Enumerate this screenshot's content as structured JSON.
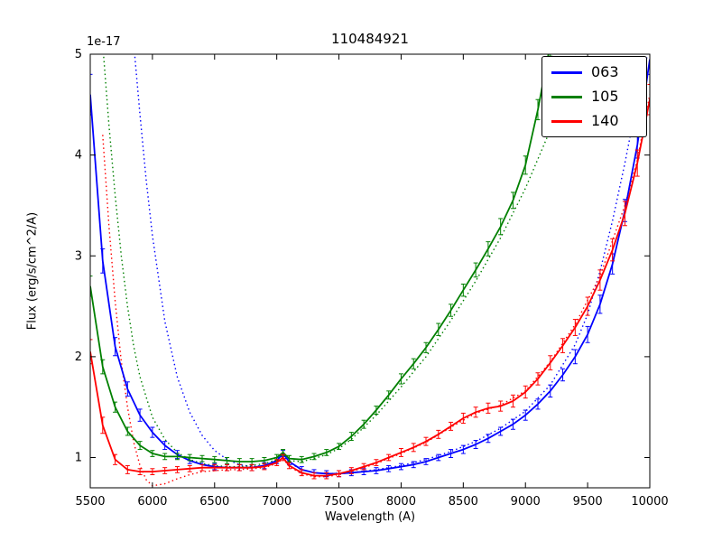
{
  "chart_data": {
    "type": "line",
    "title": "110484921",
    "xlabel": "Wavelength (A)",
    "ylabel": "Flux (erg/s/cm^2/A)",
    "y_offset_text": "1e-17",
    "xlim": [
      5500,
      10000
    ],
    "ylim": [
      0.7,
      5.0
    ],
    "xticks": [
      5500,
      6000,
      6500,
      7000,
      7500,
      8000,
      8500,
      9000,
      9500,
      10000
    ],
    "yticks": [
      1,
      2,
      3,
      4,
      5
    ],
    "grid": false,
    "legend": {
      "position": "upper right",
      "entries": [
        {
          "label": "063",
          "color": "#0000ff"
        },
        {
          "label": "105",
          "color": "#008000"
        },
        {
          "label": "140",
          "color": "#ff0000"
        }
      ]
    },
    "series": [
      {
        "name": "063-model",
        "color": "#0000ff",
        "line": "dotted",
        "x": [
          5850,
          5900,
          5950,
          6000,
          6100,
          6200,
          6300,
          6400,
          6500,
          6600,
          6700,
          6800,
          6900,
          7000,
          7050,
          7100,
          7200,
          7300,
          7400,
          7600,
          7800,
          8000,
          8200,
          8400,
          8600,
          8800,
          9000,
          9200,
          9400,
          9500,
          9600,
          9700,
          9800,
          9900,
          10000
        ],
        "y": [
          5.1,
          4.4,
          3.75,
          3.2,
          2.35,
          1.8,
          1.45,
          1.22,
          1.07,
          0.98,
          0.93,
          0.91,
          0.92,
          0.96,
          1.01,
          0.95,
          0.88,
          0.85,
          0.84,
          0.85,
          0.88,
          0.92,
          0.98,
          1.06,
          1.16,
          1.29,
          1.46,
          1.72,
          2.12,
          2.42,
          2.85,
          3.35,
          3.92,
          4.55,
          5.1
        ]
      },
      {
        "name": "105-model",
        "color": "#008000",
        "line": "dotted",
        "x": [
          5600,
          5650,
          5700,
          5750,
          5800,
          5850,
          5900,
          6000,
          6100,
          6200,
          6300,
          6400,
          6500,
          6600,
          6700,
          6800,
          6900,
          7000,
          7050,
          7100,
          7200,
          7300,
          7400,
          7500,
          7600,
          7800,
          8000,
          8200,
          8400,
          8600,
          8800,
          9000,
          9200,
          9300,
          9400
        ],
        "y": [
          5.1,
          4.3,
          3.6,
          3.0,
          2.5,
          2.1,
          1.8,
          1.4,
          1.18,
          1.05,
          0.98,
          0.94,
          0.92,
          0.91,
          0.91,
          0.92,
          0.94,
          0.98,
          1.02,
          0.97,
          0.96,
          0.99,
          1.03,
          1.09,
          1.18,
          1.42,
          1.7,
          2.0,
          2.36,
          2.75,
          3.18,
          3.67,
          4.25,
          4.6,
          5.0
        ]
      },
      {
        "name": "140-model",
        "color": "#ff0000",
        "line": "dotted",
        "x": [
          5600,
          5650,
          5700,
          5750,
          5800,
          5850,
          5900,
          5950,
          6000,
          6100,
          6200,
          6300,
          6400,
          6500,
          6600,
          6700,
          6800,
          6900,
          7000,
          7050,
          7100,
          7200,
          7300,
          7400,
          7500,
          7600,
          7800,
          8000,
          8200,
          8400,
          8600,
          8800,
          9000,
          9200,
          9400,
          9600,
          9800,
          9900,
          10000
        ],
        "y": [
          4.2,
          3.3,
          2.55,
          1.95,
          1.5,
          1.15,
          0.92,
          0.78,
          0.72,
          0.74,
          0.79,
          0.83,
          0.86,
          0.87,
          0.88,
          0.88,
          0.89,
          0.9,
          0.94,
          0.99,
          0.91,
          0.84,
          0.81,
          0.81,
          0.83,
          0.86,
          0.94,
          1.04,
          1.15,
          1.3,
          1.44,
          1.52,
          1.66,
          1.95,
          2.32,
          2.8,
          3.5,
          3.95,
          4.6
        ]
      },
      {
        "name": "063",
        "color": "#0000ff",
        "line": "solid",
        "errorbars": true,
        "x": [
          5500,
          5600,
          5700,
          5800,
          5900,
          6000,
          6100,
          6200,
          6300,
          6400,
          6500,
          6600,
          6700,
          6800,
          6900,
          7000,
          7050,
          7100,
          7200,
          7300,
          7400,
          7500,
          7600,
          7700,
          7800,
          7900,
          8000,
          8100,
          8200,
          8300,
          8400,
          8500,
          8600,
          8700,
          8800,
          8900,
          9000,
          9100,
          9200,
          9300,
          9400,
          9500,
          9600,
          9700,
          9800,
          9900,
          10000
        ],
        "y": [
          4.6,
          2.95,
          2.1,
          1.68,
          1.42,
          1.25,
          1.12,
          1.03,
          0.97,
          0.93,
          0.91,
          0.9,
          0.9,
          0.9,
          0.92,
          0.97,
          1.04,
          0.96,
          0.88,
          0.85,
          0.84,
          0.84,
          0.85,
          0.86,
          0.87,
          0.89,
          0.91,
          0.93,
          0.96,
          1.0,
          1.04,
          1.08,
          1.13,
          1.19,
          1.26,
          1.33,
          1.42,
          1.53,
          1.66,
          1.82,
          2.0,
          2.22,
          2.52,
          2.92,
          3.45,
          4.1,
          4.95
        ],
        "err": [
          0.2,
          0.12,
          0.09,
          0.07,
          0.06,
          0.05,
          0.04,
          0.04,
          0.03,
          0.03,
          0.03,
          0.03,
          0.03,
          0.03,
          0.03,
          0.03,
          0.03,
          0.03,
          0.03,
          0.03,
          0.03,
          0.03,
          0.03,
          0.03,
          0.03,
          0.03,
          0.03,
          0.03,
          0.03,
          0.03,
          0.04,
          0.04,
          0.04,
          0.04,
          0.04,
          0.05,
          0.05,
          0.05,
          0.06,
          0.06,
          0.07,
          0.08,
          0.09,
          0.1,
          0.11,
          0.13,
          0.15
        ]
      },
      {
        "name": "105",
        "color": "#008000",
        "line": "solid",
        "errorbars": true,
        "x": [
          5500,
          5600,
          5700,
          5800,
          5900,
          6000,
          6100,
          6200,
          6300,
          6400,
          6500,
          6600,
          6700,
          6800,
          6900,
          7000,
          7050,
          7100,
          7200,
          7300,
          7400,
          7500,
          7600,
          7700,
          7800,
          7900,
          8000,
          8100,
          8200,
          8300,
          8400,
          8500,
          8600,
          8700,
          8800,
          8900,
          9000,
          9100,
          9200
        ],
        "y": [
          2.7,
          1.9,
          1.5,
          1.26,
          1.12,
          1.04,
          1.01,
          1.01,
          1.0,
          0.99,
          0.98,
          0.97,
          0.96,
          0.96,
          0.97,
          1.0,
          1.05,
          0.99,
          0.98,
          1.01,
          1.05,
          1.11,
          1.21,
          1.33,
          1.47,
          1.62,
          1.78,
          1.93,
          2.09,
          2.27,
          2.46,
          2.66,
          2.86,
          3.07,
          3.29,
          3.55,
          3.9,
          4.45,
          5.1
        ],
        "err": [
          0.1,
          0.07,
          0.05,
          0.04,
          0.04,
          0.03,
          0.03,
          0.03,
          0.03,
          0.03,
          0.03,
          0.03,
          0.03,
          0.03,
          0.03,
          0.03,
          0.03,
          0.03,
          0.03,
          0.03,
          0.03,
          0.03,
          0.04,
          0.04,
          0.04,
          0.04,
          0.05,
          0.05,
          0.05,
          0.06,
          0.06,
          0.06,
          0.07,
          0.07,
          0.08,
          0.08,
          0.09,
          0.1,
          0.12
        ]
      },
      {
        "name": "140",
        "color": "#ff0000",
        "line": "solid",
        "errorbars": true,
        "x": [
          5500,
          5600,
          5700,
          5800,
          5900,
          6000,
          6100,
          6200,
          6300,
          6400,
          6500,
          6600,
          6700,
          6800,
          6900,
          7000,
          7050,
          7100,
          7200,
          7300,
          7400,
          7500,
          7600,
          7700,
          7800,
          7900,
          8000,
          8100,
          8200,
          8300,
          8400,
          8500,
          8600,
          8700,
          8800,
          8900,
          9000,
          9100,
          9200,
          9300,
          9400,
          9500,
          9600,
          9700,
          9800,
          9900,
          10000
        ],
        "y": [
          2.05,
          1.32,
          0.98,
          0.88,
          0.86,
          0.86,
          0.87,
          0.88,
          0.89,
          0.9,
          0.9,
          0.9,
          0.9,
          0.9,
          0.91,
          0.95,
          1.0,
          0.92,
          0.85,
          0.82,
          0.82,
          0.84,
          0.87,
          0.91,
          0.95,
          1.0,
          1.05,
          1.1,
          1.16,
          1.23,
          1.31,
          1.39,
          1.45,
          1.49,
          1.51,
          1.56,
          1.65,
          1.78,
          1.94,
          2.11,
          2.29,
          2.5,
          2.76,
          3.06,
          3.42,
          3.92,
          4.55
        ],
        "err": [
          0.12,
          0.08,
          0.05,
          0.04,
          0.03,
          0.03,
          0.03,
          0.03,
          0.03,
          0.03,
          0.03,
          0.03,
          0.03,
          0.03,
          0.03,
          0.03,
          0.03,
          0.03,
          0.03,
          0.03,
          0.03,
          0.03,
          0.03,
          0.03,
          0.03,
          0.03,
          0.04,
          0.04,
          0.04,
          0.04,
          0.04,
          0.05,
          0.05,
          0.05,
          0.05,
          0.06,
          0.06,
          0.06,
          0.07,
          0.07,
          0.08,
          0.09,
          0.1,
          0.11,
          0.12,
          0.13,
          0.15
        ]
      }
    ]
  }
}
